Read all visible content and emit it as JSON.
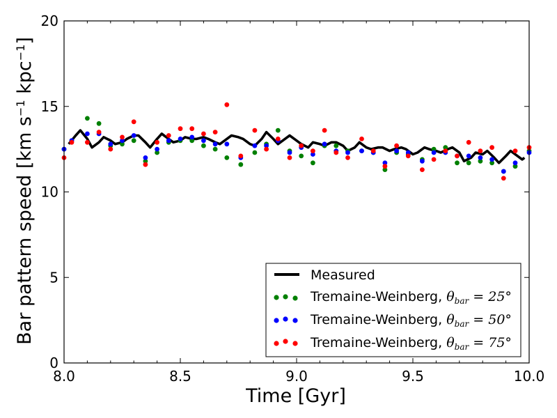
{
  "chart_data": {
    "type": "line",
    "title": "",
    "xlabel": "Time [Gyr]",
    "ylabel_parts": [
      "Bar pattern speed [km s",
      "−1",
      " kpc",
      "−1",
      "]"
    ],
    "xlim": [
      8.0,
      10.0
    ],
    "ylim": [
      0,
      20
    ],
    "xticks": [
      8.0,
      8.5,
      9.0,
      9.5,
      10.0
    ],
    "xtick_labels": [
      "8.0",
      "8.5",
      "9.0",
      "9.5",
      "10.0"
    ],
    "yticks": [
      0,
      5,
      10,
      15,
      20
    ],
    "ytick_labels": [
      "0",
      "5",
      "10",
      "15",
      "20"
    ],
    "legend_position": "lower-right",
    "x": [
      8.0,
      8.025,
      8.05,
      8.075,
      8.1,
      8.125,
      8.15,
      8.175,
      8.2,
      8.225,
      8.25,
      8.275,
      8.3,
      8.325,
      8.35,
      8.375,
      8.4,
      8.425,
      8.45,
      8.475,
      8.5,
      8.525,
      8.55,
      8.575,
      8.6,
      8.625,
      8.65,
      8.675,
      8.7,
      8.725,
      8.75,
      8.775,
      8.8,
      8.825,
      8.85,
      8.875,
      8.9,
      8.925,
      8.95,
      8.975,
      9.0,
      9.025,
      9.05,
      9.075,
      9.1,
      9.125,
      9.15,
      9.175,
      9.2,
      9.225,
      9.25,
      9.275,
      9.3,
      9.325,
      9.35,
      9.375,
      9.4,
      9.425,
      9.45,
      9.475,
      9.5,
      9.525,
      9.55,
      9.575,
      9.6,
      9.625,
      9.65,
      9.675,
      9.7,
      9.725,
      9.75,
      9.775,
      9.8,
      9.825,
      9.85,
      9.875,
      9.9,
      9.925,
      9.95,
      9.975
    ],
    "series": [
      {
        "name": "Measured",
        "style": "line",
        "color": "#000000",
        "x": [
          8.02,
          8.05,
          8.07,
          8.1,
          8.12,
          8.15,
          8.17,
          8.2,
          8.22,
          8.25,
          8.27,
          8.3,
          8.32,
          8.35,
          8.37,
          8.4,
          8.42,
          8.45,
          8.47,
          8.5,
          8.52,
          8.55,
          8.57,
          8.6,
          8.62,
          8.65,
          8.67,
          8.7,
          8.72,
          8.75,
          8.77,
          8.8,
          8.82,
          8.85,
          8.87,
          8.9,
          8.92,
          8.95,
          8.97,
          9.0,
          9.02,
          9.05,
          9.07,
          9.1,
          9.12,
          9.15,
          9.17,
          9.2,
          9.22,
          9.25,
          9.27,
          9.3,
          9.32,
          9.35,
          9.37,
          9.4,
          9.42,
          9.45,
          9.47,
          9.5,
          9.52,
          9.55,
          9.57,
          9.6,
          9.62,
          9.65,
          9.67,
          9.7,
          9.72,
          9.75,
          9.77,
          9.8,
          9.82,
          9.85,
          9.87,
          9.9,
          9.92,
          9.95,
          9.97,
          9.98
        ],
        "values": [
          12.8,
          13.3,
          13.6,
          13.1,
          12.6,
          12.9,
          13.2,
          13.0,
          12.8,
          12.9,
          13.1,
          13.3,
          13.3,
          12.9,
          12.6,
          13.1,
          13.4,
          13.1,
          12.9,
          13.0,
          13.2,
          13.1,
          13.1,
          13.2,
          13.1,
          12.9,
          12.8,
          13.1,
          13.3,
          13.2,
          13.1,
          12.8,
          12.7,
          13.1,
          13.5,
          13.1,
          12.8,
          13.1,
          13.3,
          13.0,
          12.8,
          12.6,
          12.9,
          12.8,
          12.7,
          12.9,
          12.9,
          12.7,
          12.4,
          12.6,
          12.9,
          12.6,
          12.5,
          12.6,
          12.6,
          12.4,
          12.5,
          12.6,
          12.5,
          12.2,
          12.3,
          12.6,
          12.5,
          12.4,
          12.3,
          12.5,
          12.6,
          12.3,
          11.8,
          12.0,
          12.3,
          12.2,
          12.4,
          12.0,
          11.7,
          12.1,
          12.4,
          12.1,
          11.9,
          12.0
        ]
      },
      {
        "name": "Tremaine-Weinberg, θ_bar = 25°",
        "legend_label": "Tremaine-Weinberg, ",
        "legend_theta": "θ",
        "legend_sub": "bar",
        "legend_eq": " = 25°",
        "style": "dots",
        "color": "#008000",
        "x": [
          8.0,
          8.033,
          8.1,
          8.15,
          8.2,
          8.25,
          8.3,
          8.35,
          8.4,
          8.45,
          8.5,
          8.55,
          8.6,
          8.65,
          8.7,
          8.76,
          8.82,
          8.87,
          8.92,
          8.97,
          9.02,
          9.07,
          9.12,
          9.17,
          9.22,
          9.28,
          9.33,
          9.38,
          9.43,
          9.48,
          9.54,
          9.59,
          9.64,
          9.69,
          9.74,
          9.79,
          9.84,
          9.89,
          9.94,
          10.0
        ],
        "values": [
          12.5,
          13.0,
          14.3,
          14.0,
          12.7,
          12.8,
          13.0,
          11.8,
          12.3,
          12.9,
          13.0,
          13.0,
          12.7,
          12.5,
          12.0,
          11.6,
          12.3,
          12.8,
          13.6,
          12.4,
          12.1,
          11.7,
          12.7,
          12.7,
          12.4,
          12.4,
          12.3,
          11.3,
          12.3,
          12.2,
          11.9,
          12.5,
          12.6,
          11.7,
          11.7,
          11.8,
          11.7,
          11.2,
          11.5,
          12.4
        ]
      },
      {
        "name": "Tremaine-Weinberg, θ_bar = 50°",
        "legend_label": "Tremaine-Weinberg, ",
        "legend_theta": "θ",
        "legend_sub": "bar",
        "legend_eq": " = 50°",
        "style": "dots",
        "color": "#0000ff",
        "x": [
          8.0,
          8.033,
          8.1,
          8.15,
          8.2,
          8.25,
          8.3,
          8.35,
          8.4,
          8.45,
          8.5,
          8.55,
          8.6,
          8.65,
          8.7,
          8.76,
          8.82,
          8.87,
          8.92,
          8.97,
          9.02,
          9.07,
          9.12,
          9.17,
          9.22,
          9.28,
          9.33,
          9.38,
          9.43,
          9.48,
          9.54,
          9.59,
          9.64,
          9.69,
          9.74,
          9.79,
          9.84,
          9.89,
          9.94,
          10.0
        ],
        "values": [
          12.5,
          13.0,
          13.4,
          13.4,
          12.8,
          13.0,
          13.3,
          12.0,
          12.5,
          13.0,
          13.1,
          13.2,
          13.0,
          12.8,
          12.8,
          12.0,
          12.7,
          12.7,
          13.0,
          12.3,
          12.6,
          12.2,
          12.8,
          12.4,
          12.3,
          12.4,
          12.3,
          11.7,
          12.4,
          12.3,
          11.8,
          12.3,
          12.3,
          12.1,
          12.1,
          12.0,
          11.9,
          11.2,
          11.7,
          12.3
        ]
      },
      {
        "name": "Tremaine-Weinberg, θ_bar = 75°",
        "legend_label": "Tremaine-Weinberg, ",
        "legend_theta": "θ",
        "legend_sub": "bar",
        "legend_eq": " = 75°",
        "style": "dots",
        "color": "#ff0000",
        "x": [
          8.0,
          8.033,
          8.1,
          8.15,
          8.2,
          8.25,
          8.3,
          8.35,
          8.4,
          8.45,
          8.5,
          8.55,
          8.6,
          8.65,
          8.7,
          8.76,
          8.82,
          8.87,
          8.92,
          8.97,
          9.02,
          9.07,
          9.12,
          9.17,
          9.22,
          9.28,
          9.33,
          9.38,
          9.43,
          9.48,
          9.54,
          9.59,
          9.64,
          9.69,
          9.74,
          9.79,
          9.84,
          9.89,
          9.94,
          10.0
        ],
        "values": [
          12.0,
          12.9,
          12.9,
          13.5,
          12.5,
          13.2,
          14.1,
          11.6,
          12.9,
          13.3,
          13.7,
          13.7,
          13.4,
          13.5,
          15.1,
          12.1,
          13.6,
          12.5,
          13.1,
          12.0,
          12.7,
          12.4,
          13.6,
          12.3,
          12.0,
          13.1,
          12.4,
          11.5,
          12.7,
          12.1,
          11.3,
          11.9,
          12.4,
          12.1,
          12.9,
          12.4,
          12.6,
          10.8,
          12.4,
          12.6
        ]
      }
    ]
  }
}
